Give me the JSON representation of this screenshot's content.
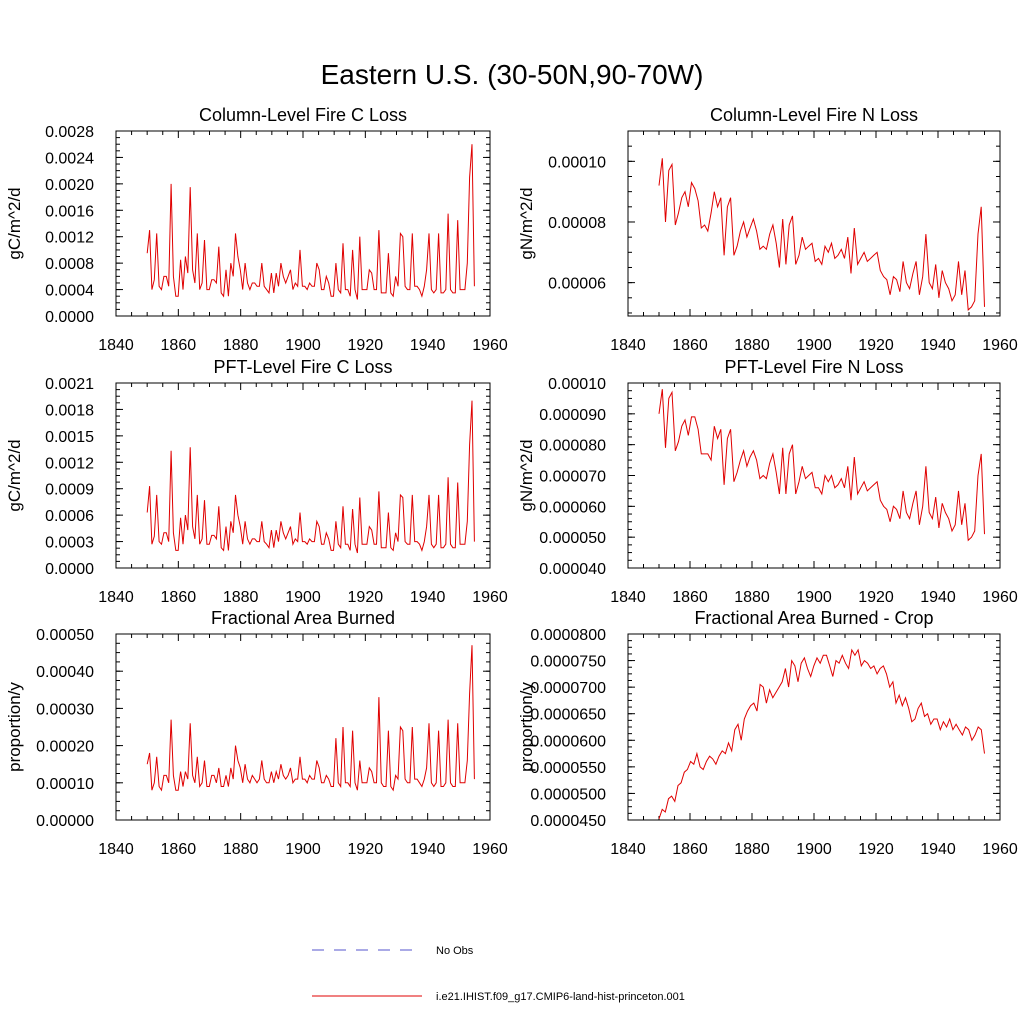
{
  "figure": {
    "title": "Eastern U.S. (30-50N,90-70W)",
    "legend": [
      {
        "label": "No Obs",
        "color": "#5555cc",
        "dash": true
      },
      {
        "label": "i.e21.IHIST.f09_g17.CMIP6-land-hist-princeton.001",
        "color": "#e00000",
        "dash": false
      }
    ]
  },
  "chart_data": [
    {
      "type": "line",
      "title": "Column-Level Fire C Loss",
      "ylabel": "gC/m^2/d",
      "xlim": [
        1840,
        1960
      ],
      "xticks": [
        1840,
        1860,
        1880,
        1900,
        1920,
        1940,
        1960
      ],
      "ylim": [
        0,
        0.0028
      ],
      "yticks": [
        "0.0000",
        "0.0004",
        "0.0008",
        "0.0012",
        "0.0016",
        "0.0020",
        "0.0024",
        "0.0028"
      ],
      "x_start": 1850,
      "series": [
        {
          "color": "#e00000",
          "values": [
            0.00095,
            0.0013,
            0.0004,
            0.00055,
            0.00125,
            0.00045,
            0.0004,
            0.0006,
            0.0006,
            0.00045,
            0.002,
            0.0006,
            0.0003,
            0.0003,
            0.00085,
            0.0004,
            0.0009,
            0.00065,
            0.00195,
            0.0007,
            0.0005,
            0.00125,
            0.0004,
            0.0005,
            0.00115,
            0.0004,
            0.0004,
            0.00055,
            0.00055,
            0.0005,
            0.00105,
            0.00035,
            0.0003,
            0.0007,
            0.0003,
            0.0008,
            0.0006,
            0.00125,
            0.0009,
            0.0007,
            0.0004,
            0.0008,
            0.0005,
            0.0004,
            0.0005,
            0.0005,
            0.00045,
            0.00045,
            0.0008,
            0.00045,
            0.0004,
            0.00035,
            0.00065,
            0.00035,
            0.00065,
            0.00045,
            0.0008,
            0.0006,
            0.0005,
            0.0006,
            0.0007,
            0.0004,
            0.0005,
            0.00045,
            0.001,
            0.00045,
            0.00045,
            0.0004,
            0.0005,
            0.00045,
            0.00045,
            0.0008,
            0.0007,
            0.0004,
            0.0004,
            0.0006,
            0.0005,
            0.0003,
            0.0003,
            0.0008,
            0.0004,
            0.00035,
            0.0011,
            0.0004,
            0.0004,
            0.0003,
            0.001,
            0.0004,
            0.00025,
            0.0012,
            0.0004,
            0.0004,
            0.0004,
            0.0007,
            0.00065,
            0.0004,
            0.0004,
            0.0013,
            0.00035,
            0.00035,
            0.00035,
            0.00095,
            0.00035,
            0.0003,
            0.0006,
            0.00045,
            0.00125,
            0.0012,
            0.00045,
            0.0004,
            0.0004,
            0.00125,
            0.00045,
            0.00045,
            0.0004,
            0.0003,
            0.00045,
            0.0007,
            0.00125,
            0.0004,
            0.00035,
            0.0004,
            0.00125,
            0.00035,
            0.00035,
            0.0004,
            0.00155,
            0.0004,
            0.00035,
            0.00035,
            0.00145,
            0.0004,
            0.0004,
            0.0004,
            0.0008,
            0.0021,
            0.0026,
            0.00045
          ]
        }
      ]
    },
    {
      "type": "line",
      "title": "Column-Level Fire N Loss",
      "ylabel": "gN/m^2/d",
      "xlim": [
        1840,
        1960
      ],
      "xticks": [
        1840,
        1860,
        1880,
        1900,
        1920,
        1940,
        1960
      ],
      "ylim": [
        4.9e-05,
        0.00011
      ],
      "yticks": [
        "0.00006",
        "0.00008",
        "0.00010"
      ],
      "ytick_values": [
        6e-05,
        8e-05,
        0.0001
      ],
      "x_start": 1850,
      "series": [
        {
          "color": "#e00000",
          "values": [
            9.2e-05,
            0.000101,
            8e-05,
            9.7e-05,
            9.9e-05,
            7.9e-05,
            8.3e-05,
            8.8e-05,
            9e-05,
            8.5e-05,
            9.3e-05,
            9.1e-05,
            8.7e-05,
            7.8e-05,
            7.9e-05,
            7.7e-05,
            8.3e-05,
            9e-05,
            8.5e-05,
            8.8e-05,
            6.9e-05,
            8.5e-05,
            8.8e-05,
            6.9e-05,
            7.2e-05,
            7.7e-05,
            8e-05,
            7.5e-05,
            7.8e-05,
            8.1e-05,
            7.7e-05,
            7.1e-05,
            7.2e-05,
            7.1e-05,
            7.6e-05,
            7.9e-05,
            7.3e-05,
            6.5e-05,
            8.1e-05,
            6.6e-05,
            7.9e-05,
            8.2e-05,
            6.6e-05,
            6.9e-05,
            7.5e-05,
            7.1e-05,
            7.2e-05,
            7.3e-05,
            6.7e-05,
            6.8e-05,
            6.6e-05,
            7.2e-05,
            7e-05,
            7.3e-05,
            6.8e-05,
            6.9e-05,
            7.1e-05,
            6.8e-05,
            7.5e-05,
            6.3e-05,
            7.8e-05,
            6.6e-05,
            6.8e-05,
            7e-05,
            6.7e-05,
            6.8e-05,
            6.9e-05,
            7e-05,
            6.4e-05,
            6.2e-05,
            6.1e-05,
            5.6e-05,
            6.2e-05,
            6.1e-05,
            5.7e-05,
            6.7e-05,
            6e-05,
            5.8e-05,
            6.3e-05,
            6.7e-05,
            5.6e-05,
            6.2e-05,
            7.6e-05,
            6e-05,
            5.8e-05,
            6.6e-05,
            5.5e-05,
            6.4e-05,
            6e-05,
            5.8e-05,
            5.4e-05,
            5.6e-05,
            6.7e-05,
            5.6e-05,
            6.4e-05,
            5.1e-05,
            5.2e-05,
            5.4e-05,
            7.6e-05,
            8.5e-05,
            5.2e-05
          ]
        }
      ]
    },
    {
      "type": "line",
      "title": "PFT-Level Fire C Loss",
      "ylabel": "gC/m^2/d",
      "xlim": [
        1840,
        1960
      ],
      "xticks": [
        1840,
        1860,
        1880,
        1900,
        1920,
        1940,
        1960
      ],
      "ylim": [
        0,
        0.0021
      ],
      "yticks": [
        "0.0000",
        "0.0003",
        "0.0006",
        "0.0009",
        "0.0012",
        "0.0015",
        "0.0018",
        "0.0021"
      ],
      "x_start": 1850,
      "series": [
        {
          "color": "#e00000",
          "values": [
            0.00063,
            0.00093,
            0.00027,
            0.00036,
            0.00083,
            0.0003,
            0.00027,
            0.0004,
            0.0004,
            0.0003,
            0.00133,
            0.0004,
            0.0002,
            0.0002,
            0.00057,
            0.00027,
            0.0006,
            0.00043,
            0.00137,
            0.00047,
            0.00033,
            0.00083,
            0.00027,
            0.00033,
            0.00077,
            0.00027,
            0.00027,
            0.00037,
            0.00037,
            0.00033,
            0.0007,
            0.00023,
            0.0002,
            0.00047,
            0.0002,
            0.00053,
            0.0004,
            0.00083,
            0.0006,
            0.00047,
            0.00027,
            0.00053,
            0.00033,
            0.00027,
            0.00033,
            0.00033,
            0.0003,
            0.0003,
            0.00053,
            0.0003,
            0.00027,
            0.00023,
            0.00043,
            0.00023,
            0.00043,
            0.0003,
            0.00053,
            0.0004,
            0.00033,
            0.0004,
            0.00047,
            0.00027,
            0.00033,
            0.0003,
            0.00063,
            0.0003,
            0.0003,
            0.00027,
            0.00033,
            0.0003,
            0.0003,
            0.00053,
            0.00047,
            0.00027,
            0.00027,
            0.0004,
            0.00033,
            0.0002,
            0.0002,
            0.00053,
            0.00027,
            0.00023,
            0.0007,
            0.00027,
            0.00027,
            0.0002,
            0.00067,
            0.00027,
            0.00017,
            0.0008,
            0.00027,
            0.00027,
            0.00027,
            0.00047,
            0.00043,
            0.00027,
            0.00027,
            0.00087,
            0.00023,
            0.00023,
            0.00023,
            0.00063,
            0.00023,
            0.0002,
            0.0004,
            0.0003,
            0.00083,
            0.0008,
            0.0003,
            0.00027,
            0.00027,
            0.00083,
            0.0003,
            0.0003,
            0.00027,
            0.0002,
            0.0003,
            0.00047,
            0.00083,
            0.00027,
            0.00023,
            0.00027,
            0.00083,
            0.00023,
            0.00023,
            0.00027,
            0.00103,
            0.00027,
            0.00023,
            0.00023,
            0.00097,
            0.00027,
            0.00027,
            0.00027,
            0.00053,
            0.0014,
            0.0019,
            0.0003
          ]
        }
      ]
    },
    {
      "type": "line",
      "title": "PFT-Level Fire N Loss",
      "ylabel": "gN/m^2/d",
      "xlim": [
        1840,
        1960
      ],
      "xticks": [
        1840,
        1860,
        1880,
        1900,
        1920,
        1940,
        1960
      ],
      "ylim": [
        4e-05,
        0.0001
      ],
      "yticks": [
        "0.000040",
        "0.000050",
        "0.000060",
        "0.000070",
        "0.000080",
        "0.000090",
        "0.00010"
      ],
      "ytick_values": [
        4e-05,
        5e-05,
        6e-05,
        7e-05,
        8e-05,
        9e-05,
        0.0001
      ],
      "x_start": 1850,
      "series": [
        {
          "color": "#e00000",
          "values": [
            9e-05,
            9.8e-05,
            7.9e-05,
            9.5e-05,
            9.7e-05,
            7.8e-05,
            8.1e-05,
            8.6e-05,
            8.8e-05,
            8.3e-05,
            8.9e-05,
            8.9e-05,
            8.5e-05,
            7.7e-05,
            7.7e-05,
            7.7e-05,
            7.5e-05,
            8.6e-05,
            8.2e-05,
            8.5e-05,
            6.7e-05,
            8.2e-05,
            8.5e-05,
            6.8e-05,
            7.1e-05,
            7.5e-05,
            7.8e-05,
            7.3e-05,
            7.6e-05,
            7.8e-05,
            7.5e-05,
            6.9e-05,
            7e-05,
            6.9e-05,
            7.4e-05,
            7.7e-05,
            7.1e-05,
            6.4e-05,
            7.9e-05,
            6.4e-05,
            7.7e-05,
            8e-05,
            6.4e-05,
            6.8e-05,
            7.3e-05,
            6.9e-05,
            7e-05,
            7.1e-05,
            6.6e-05,
            6.6e-05,
            6.4e-05,
            7e-05,
            6.8e-05,
            7e-05,
            6.6e-05,
            6.7e-05,
            6.9e-05,
            6.6e-05,
            7.3e-05,
            6.2e-05,
            7.6e-05,
            6.4e-05,
            6.6e-05,
            6.8e-05,
            6.5e-05,
            6.6e-05,
            6.7e-05,
            6.8e-05,
            6.2e-05,
            6e-05,
            5.9e-05,
            5.5e-05,
            6e-05,
            5.9e-05,
            5.6e-05,
            6.5e-05,
            5.8e-05,
            5.6e-05,
            6.1e-05,
            6.5e-05,
            5.4e-05,
            6e-05,
            7.3e-05,
            5.8e-05,
            5.6e-05,
            6.3e-05,
            5.3e-05,
            6.1e-05,
            5.8e-05,
            5.6e-05,
            5.2e-05,
            5.4e-05,
            6.5e-05,
            5.4e-05,
            6.1e-05,
            4.9e-05,
            5e-05,
            5.2e-05,
            7e-05,
            7.7e-05,
            5.1e-05
          ]
        }
      ]
    },
    {
      "type": "line",
      "title": "Fractional Area Burned",
      "ylabel": "proportion/y",
      "xlim": [
        1840,
        1960
      ],
      "xticks": [
        1840,
        1860,
        1880,
        1900,
        1920,
        1940,
        1960
      ],
      "ylim": [
        0,
        0.0005
      ],
      "yticks": [
        "0.00000",
        "0.00010",
        "0.00020",
        "0.00030",
        "0.00040",
        "0.00050"
      ],
      "ytick_values": [
        0,
        0.0001,
        0.0002,
        0.0003,
        0.0004,
        0.0005
      ],
      "x_start": 1850,
      "series": [
        {
          "color": "#e00000",
          "values": [
            0.00015,
            0.00018,
            8e-05,
            0.0001,
            0.00017,
            9e-05,
            8e-05,
            0.00012,
            0.00012,
            0.0001,
            0.00027,
            0.00012,
            8e-05,
            8e-05,
            0.00013,
            9e-05,
            0.00013,
            0.00011,
            0.00026,
            0.00012,
            0.0001,
            0.00017,
            9e-05,
            0.0001,
            0.00016,
            9e-05,
            9e-05,
            0.00012,
            0.00012,
            0.0001,
            0.00014,
            9e-05,
            9e-05,
            0.00012,
            9e-05,
            0.00014,
            0.00011,
            0.0002,
            0.00016,
            0.00014,
            0.0001,
            0.00015,
            0.00011,
            0.0001,
            0.00012,
            0.00011,
            0.0001,
            0.00011,
            0.00016,
            0.00011,
            0.0001,
            0.0001,
            0.00013,
            0.0001,
            0.00013,
            0.00011,
            0.00015,
            0.00012,
            0.00011,
            0.00012,
            0.00014,
            0.0001,
            0.00011,
            0.00011,
            0.00017,
            0.00011,
            0.00011,
            0.0001,
            0.00012,
            0.00011,
            0.00011,
            0.00016,
            0.00014,
            0.0001,
            0.0001,
            0.00012,
            0.00011,
            9e-05,
            9e-05,
            0.00022,
            0.0001,
            9e-05,
            0.00025,
            0.0001,
            0.0001,
            9e-05,
            0.00024,
            0.0001,
            8e-05,
            0.00016,
            0.0001,
            0.0001,
            0.0001,
            0.00014,
            0.00013,
            0.0001,
            0.0001,
            0.00033,
            0.0001,
            9e-05,
            9e-05,
            0.00024,
            9e-05,
            8e-05,
            0.00012,
            0.00011,
            0.00025,
            0.00024,
            0.00011,
            0.0001,
            0.0001,
            0.00025,
            0.00011,
            0.00011,
            0.0001,
            9e-05,
            0.00011,
            0.00014,
            0.00026,
            0.0001,
            9e-05,
            0.0001,
            0.00024,
            9e-05,
            9e-05,
            0.0001,
            0.00027,
            0.0001,
            9e-05,
            9e-05,
            0.00026,
            0.0001,
            0.0001,
            0.0001,
            0.00016,
            0.00034,
            0.00047,
            0.00011
          ]
        }
      ]
    },
    {
      "type": "line",
      "title": "Fractional Area Burned - Crop",
      "ylabel": "proportion/y",
      "xlim": [
        1840,
        1960
      ],
      "xticks": [
        1840,
        1860,
        1880,
        1900,
        1920,
        1940,
        1960
      ],
      "ylim": [
        4.5e-05,
        8e-05
      ],
      "yticks": [
        "0.0000450",
        "0.0000500",
        "0.0000550",
        "0.0000600",
        "0.0000650",
        "0.0000700",
        "0.0000750",
        "0.0000800"
      ],
      "ytick_values": [
        4.5e-05,
        5e-05,
        5.5e-05,
        6e-05,
        6.5e-05,
        7e-05,
        7.5e-05,
        8e-05
      ],
      "x_start": 1850,
      "series": [
        {
          "color": "#e00000",
          "values": [
            4.52e-05,
            4.7e-05,
            4.65e-05,
            4.9e-05,
            4.95e-05,
            4.85e-05,
            5.15e-05,
            5.2e-05,
            5.4e-05,
            5.45e-05,
            5.6e-05,
            5.55e-05,
            5.75e-05,
            5.5e-05,
            5.45e-05,
            5.6e-05,
            5.7e-05,
            5.65e-05,
            5.55e-05,
            5.7e-05,
            5.8e-05,
            5.75e-05,
            5.95e-05,
            5.8e-05,
            6.2e-05,
            6.3e-05,
            6e-05,
            6.4e-05,
            6.55e-05,
            6.65e-05,
            6.7e-05,
            6.55e-05,
            7.05e-05,
            7e-05,
            6.7e-05,
            6.95e-05,
            6.8e-05,
            6.9e-05,
            7e-05,
            7.1e-05,
            7.35e-05,
            7e-05,
            7.5e-05,
            7.4e-05,
            7.1e-05,
            7.45e-05,
            7.55e-05,
            7.35e-05,
            7.2e-05,
            7.4e-05,
            7.55e-05,
            7.45e-05,
            7.6e-05,
            7.6e-05,
            7.4e-05,
            7.2e-05,
            7.5e-05,
            7.45e-05,
            7.6e-05,
            7.45e-05,
            7.35e-05,
            7.7e-05,
            7.6e-05,
            7.7e-05,
            7.4e-05,
            7.5e-05,
            7.45e-05,
            7.35e-05,
            7.4e-05,
            7.25e-05,
            7.35e-05,
            7.4e-05,
            7.25e-05,
            7e-05,
            7.1e-05,
            6.7e-05,
            6.85e-05,
            6.65e-05,
            6.8e-05,
            6.6e-05,
            6.35e-05,
            6.4e-05,
            6.6e-05,
            6.7e-05,
            6.45e-05,
            6.5e-05,
            6.3e-05,
            6.4e-05,
            6.4e-05,
            6.2e-05,
            6.35e-05,
            6.25e-05,
            6.4e-05,
            6.2e-05,
            6.3e-05,
            6.2e-05,
            6.1e-05,
            6.25e-05,
            6.2e-05,
            6e-05,
            6.1e-05,
            6.25e-05,
            6.2e-05,
            5.75e-05
          ]
        }
      ]
    }
  ]
}
